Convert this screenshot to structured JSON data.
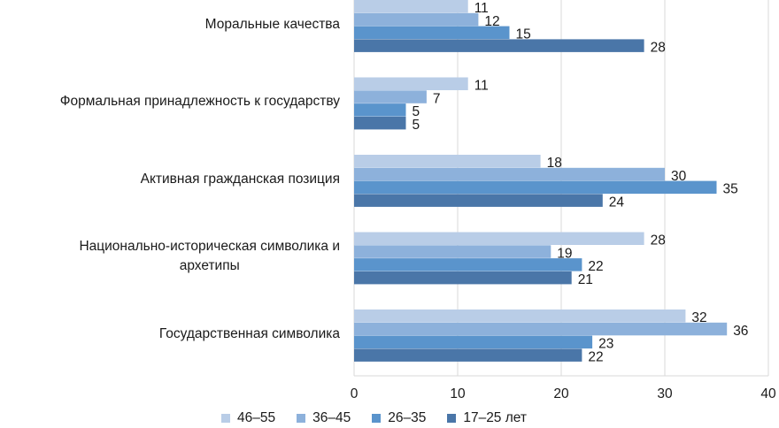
{
  "chart_data": {
    "type": "bar",
    "orientation": "horizontal",
    "categories": [
      "Моральные качества",
      "Формальная принадлежность к государству",
      "Активная гражданская позиция",
      "Национально-историческая символика и архетипы",
      "Государственная символика"
    ],
    "category_lines": [
      [
        "Моральные качества"
      ],
      [
        "Формальная принадлежность к государству"
      ],
      [
        "Активная гражданская позиция"
      ],
      [
        "Национально-историческая символика и",
        "архетипы"
      ],
      [
        "Государственная символика"
      ]
    ],
    "series": [
      {
        "name": "46–55",
        "color": "#b9cde7",
        "values": [
          11,
          11,
          18,
          28,
          32
        ]
      },
      {
        "name": "36–45",
        "color": "#8db1db",
        "values": [
          12,
          7,
          30,
          19,
          36
        ]
      },
      {
        "name": "26–35",
        "color": "#5a94cc",
        "values": [
          15,
          5,
          35,
          22,
          23
        ]
      },
      {
        "name": "17–25 лет",
        "color": "#4a76a8",
        "values": [
          28,
          5,
          24,
          21,
          22
        ]
      }
    ],
    "xlim": [
      0,
      40
    ],
    "xticks": [
      0,
      10,
      20,
      30,
      40
    ],
    "grid": true,
    "legend": "bottom"
  }
}
